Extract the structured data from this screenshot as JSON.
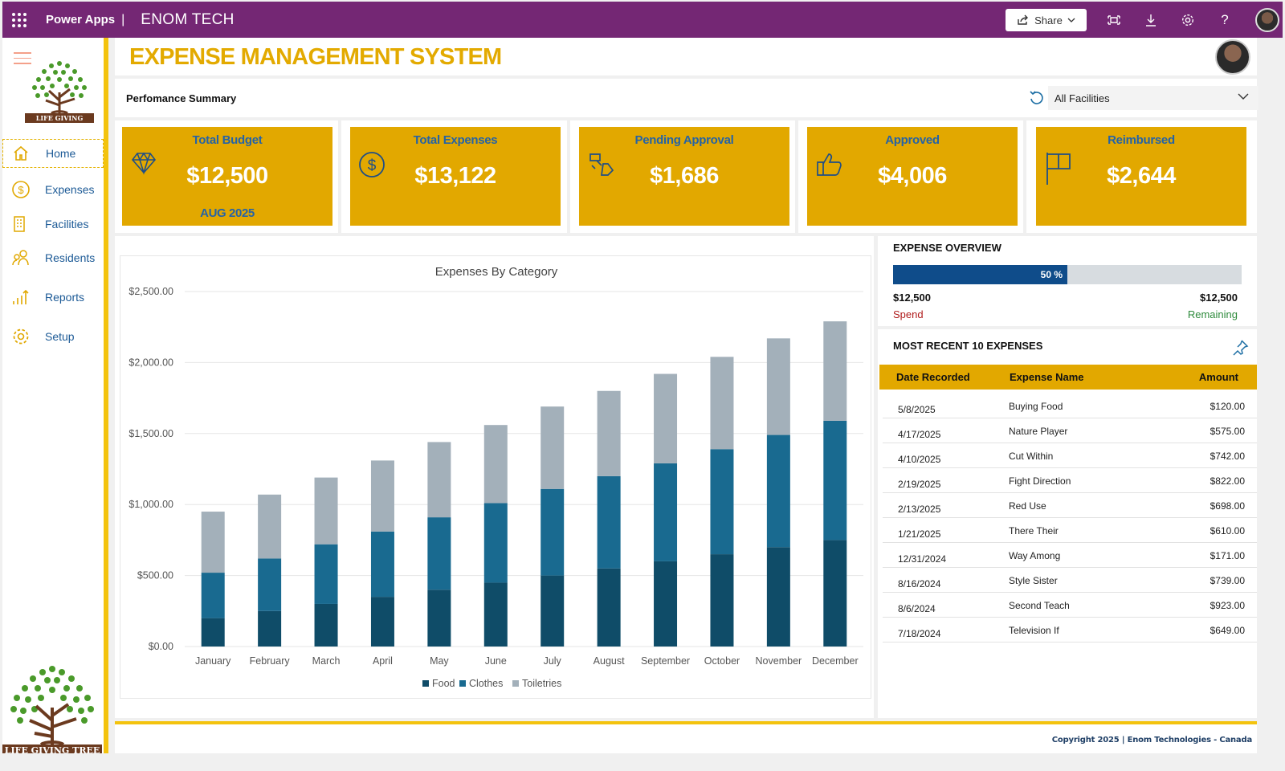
{
  "topbar": {
    "app_name": "Power Apps",
    "separator": "|",
    "company": "ENOM TECH",
    "share_label": "Share"
  },
  "logo": {
    "caption": "LIFE GIVING TREE"
  },
  "sidebar": {
    "items": [
      {
        "label": "Home",
        "icon": "home-icon"
      },
      {
        "label": "Expenses",
        "icon": "dollar-circle-icon"
      },
      {
        "label": "Facilities",
        "icon": "building-icon"
      },
      {
        "label": "Residents",
        "icon": "people-icon"
      },
      {
        "label": "Reports",
        "icon": "bar-chart-icon"
      },
      {
        "label": "Setup",
        "icon": "gear-icon"
      }
    ]
  },
  "header": {
    "title": "EXPENSE MANAGEMENT SYSTEM"
  },
  "performance": {
    "label": "Perfomance Summary",
    "facility_value": "All Facilities"
  },
  "kpis": [
    {
      "title": "Total Budget",
      "value": "$12,500",
      "sub": "AUG 2025",
      "icon": "diamond-icon"
    },
    {
      "title": "Total Expenses",
      "value": "$13,122",
      "icon": "dollar-circle-icon"
    },
    {
      "title": "Pending Approval",
      "value": "$1,686",
      "icon": "swap-shapes-icon"
    },
    {
      "title": "Approved",
      "value": "$4,006",
      "icon": "thumbs-up-icon"
    },
    {
      "title": "Reimbursed",
      "value": "$2,644",
      "icon": "flag-icon"
    }
  ],
  "overview": {
    "title": "EXPENSE OVERVIEW",
    "percent": 50,
    "percent_label": "50 %",
    "spend_amount": "$12,500",
    "spend_label": "Spend",
    "remaining_amount": "$12,500",
    "remaining_label": "Remaining",
    "bar_color": "#0f4c8a"
  },
  "recent": {
    "title": "MOST RECENT 10 EXPENSES",
    "columns": {
      "date": "Date Recorded",
      "name": "Expense Name",
      "amount": "Amount"
    },
    "rows": [
      {
        "date": "5/8/2025",
        "name": "Buying Food",
        "amount": "$120.00"
      },
      {
        "date": "4/17/2025",
        "name": "Nature Player",
        "amount": "$575.00"
      },
      {
        "date": "4/10/2025",
        "name": "Cut Within",
        "amount": "$742.00"
      },
      {
        "date": "2/19/2025",
        "name": "Fight Direction",
        "amount": "$822.00"
      },
      {
        "date": "2/13/2025",
        "name": "Red Use",
        "amount": "$698.00"
      },
      {
        "date": "1/21/2025",
        "name": "There Their",
        "amount": "$610.00"
      },
      {
        "date": "12/31/2024",
        "name": "Way Among",
        "amount": "$171.00"
      },
      {
        "date": "8/16/2024",
        "name": "Style Sister",
        "amount": "$739.00"
      },
      {
        "date": "8/6/2024",
        "name": "Second Teach",
        "amount": "$923.00"
      },
      {
        "date": "7/18/2024",
        "name": "Television If",
        "amount": "$649.00"
      }
    ]
  },
  "footer": {
    "copyright": "Copyright 2025 | Enom Technologies - Canada"
  },
  "colors": {
    "brand_purple": "#742774",
    "accent_gold": "#e2a800",
    "stripe_yellow": "#f3c30e",
    "text_blue": "#2563a6",
    "spend_red": "#b01c1c",
    "remaining_green": "#2e8b3c"
  },
  "chart_data": {
    "type": "bar",
    "stacked": true,
    "title": "Expenses By Category",
    "xlabel": "",
    "ylabel": "",
    "ylim": [
      0,
      2500
    ],
    "yticks": [
      0,
      500,
      1000,
      1500,
      2000,
      2500
    ],
    "ytick_labels": [
      "$0.00",
      "$500.00",
      "$1,000.00",
      "$1,500.00",
      "$2,000.00",
      "$2,500.00"
    ],
    "categories": [
      "January",
      "February",
      "March",
      "April",
      "May",
      "June",
      "July",
      "August",
      "September",
      "October",
      "November",
      "December"
    ],
    "series": [
      {
        "name": "Food",
        "color": "#0f4c68",
        "values": [
          200,
          250,
          300,
          350,
          400,
          450,
          500,
          550,
          600,
          650,
          700,
          750
        ]
      },
      {
        "name": "Clothes",
        "color": "#196a90",
        "values": [
          320,
          370,
          420,
          460,
          510,
          560,
          610,
          650,
          690,
          740,
          790,
          840
        ]
      },
      {
        "name": "Toiletries",
        "color": "#a3b0ba",
        "values": [
          430,
          450,
          470,
          500,
          530,
          550,
          580,
          600,
          630,
          650,
          680,
          700
        ]
      }
    ],
    "legend_position": "bottom"
  }
}
